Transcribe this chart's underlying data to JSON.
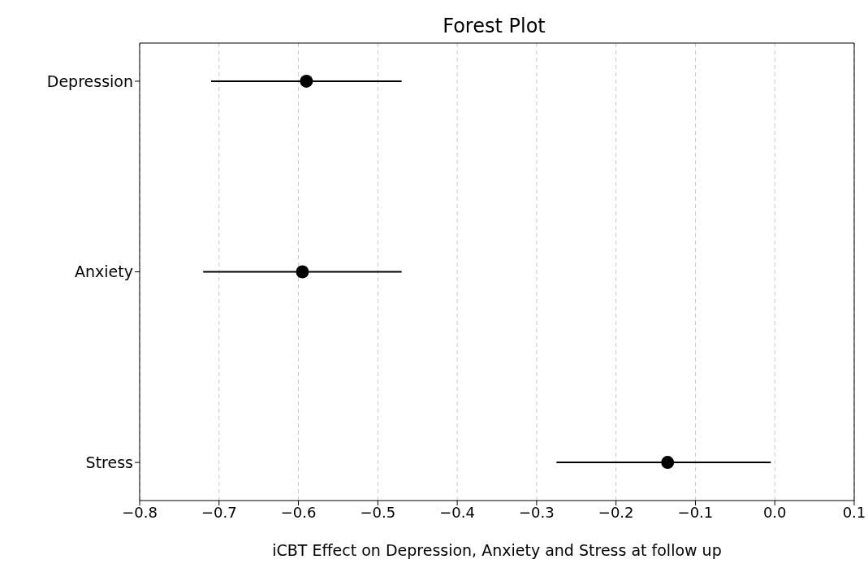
{
  "chart_data": {
    "type": "scatter",
    "title": "Forest Plot",
    "xlabel": "iCBT Effect on Depression, Anxiety and Stress at follow up",
    "orientation": "horizontal",
    "categories": [
      "Depression",
      "Anxiety",
      "Stress"
    ],
    "values": [
      -0.59,
      -0.595,
      -0.135
    ],
    "errors": [
      [
        -0.71,
        -0.47
      ],
      [
        -0.72,
        -0.47
      ],
      [
        -0.275,
        -0.005
      ]
    ],
    "color": "#000000",
    "marker": "circle",
    "xlim": [
      -0.8,
      0.1
    ],
    "xticks": [
      -0.8,
      -0.7,
      -0.6,
      -0.5,
      -0.4,
      -0.3,
      -0.2,
      -0.1,
      {
        "value": 0,
        "label": "0.0"
      },
      0.1
    ],
    "grid": "x"
  }
}
